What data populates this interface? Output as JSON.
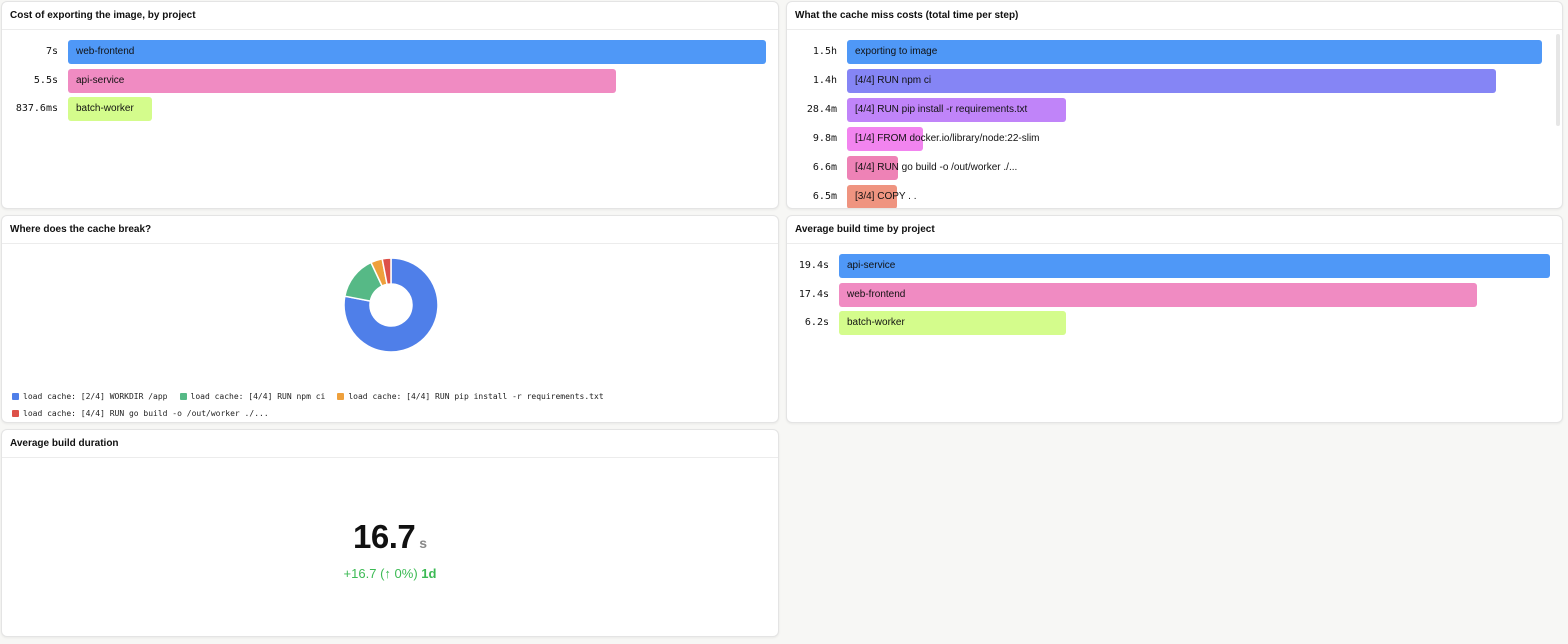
{
  "panels": {
    "export_cost": {
      "title": "Cost of exporting the image, by project",
      "chart_data": {
        "type": "bar",
        "orientation": "horizontal",
        "unit": "seconds",
        "rows": [
          {
            "label": "web-frontend",
            "display": "7s",
            "value": 7,
            "color": "#4f98f7"
          },
          {
            "label": "api-service",
            "display": "5.5s",
            "value": 5.5,
            "color": "#f08bc2"
          },
          {
            "label": "batch-worker",
            "display": "837.6ms",
            "value": 0.8376,
            "color": "#d4fc8c"
          }
        ]
      }
    },
    "cache_miss": {
      "title": "What the cache miss costs (total time per step)",
      "chart_data": {
        "type": "bar",
        "orientation": "horizontal",
        "unit": "minutes",
        "rows": [
          {
            "label": "exporting to image",
            "display": "1.5h",
            "value": 90,
            "color": "#4f98f7"
          },
          {
            "label": "[4/4] RUN npm ci",
            "display": "1.4h",
            "value": 84,
            "color": "#8585f5"
          },
          {
            "label": "[4/4] RUN pip install -r requirements.txt",
            "display": "28.4m",
            "value": 28.4,
            "color": "#c084f9"
          },
          {
            "label": "[1/4] FROM docker.io/library/node:22-slim",
            "display": "9.8m",
            "value": 9.8,
            "color": "#f284ef"
          },
          {
            "label": "[4/4] RUN go build -o /out/worker ./...",
            "display": "6.6m",
            "value": 6.6,
            "color": "#ee82b6"
          },
          {
            "label": "[3/4] COPY . .",
            "display": "6.5m",
            "value": 6.5,
            "color": "#ef9480"
          }
        ]
      }
    },
    "cache_break": {
      "title": "Where does the cache break?",
      "chart_data": {
        "type": "pie",
        "donut": true,
        "slices": [
          {
            "label": "load cache: [2/4] WORKDIR /app",
            "value": 78,
            "color": "#4f7fe9"
          },
          {
            "label": "load cache: [4/4] RUN npm ci",
            "value": 15,
            "color": "#56b986"
          },
          {
            "label": "load cache: [4/4] RUN pip install -r requirements.txt",
            "value": 4,
            "color": "#eea03c"
          },
          {
            "label": "load cache: [4/4] RUN go build -o /out/worker ./...",
            "value": 3,
            "color": "#dd5149"
          }
        ],
        "legend": "bottom-left"
      }
    },
    "avg_build_time": {
      "title": "Average build time by project",
      "chart_data": {
        "type": "bar",
        "orientation": "horizontal",
        "unit": "seconds",
        "rows": [
          {
            "label": "api-service",
            "display": "19.4s",
            "value": 19.4,
            "color": "#4f98f7"
          },
          {
            "label": "web-frontend",
            "display": "17.4s",
            "value": 17.4,
            "color": "#f08bc2"
          },
          {
            "label": "batch-worker",
            "display": "6.2s",
            "value": 6.2,
            "color": "#d4fc8c"
          }
        ]
      }
    },
    "avg_duration": {
      "title": "Average build duration",
      "value": "16.7",
      "unit": "s",
      "delta_value": "+16.7",
      "delta_arrow": "↑",
      "delta_percent": "0%",
      "delta_period": "1d",
      "delta_color": "#3cba54"
    }
  }
}
